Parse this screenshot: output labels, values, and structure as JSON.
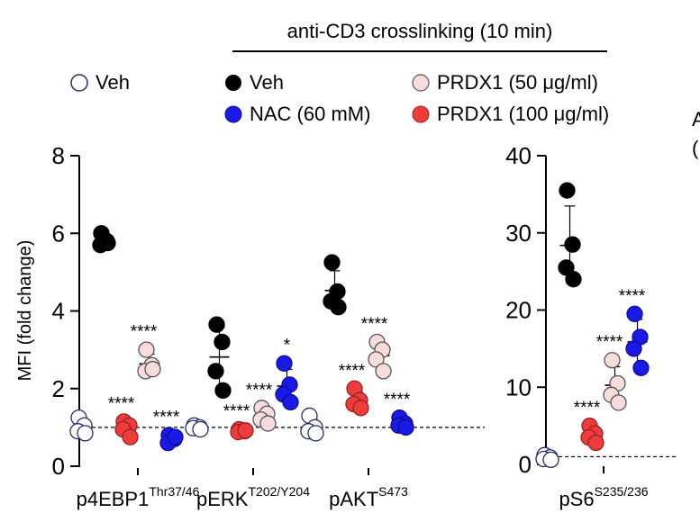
{
  "header": {
    "condition": "anti-CD3 crosslinking (10 min)"
  },
  "legend": [
    {
      "key": "veh_unstim",
      "label": "Veh",
      "fill": "#ffffff",
      "stroke": "#1f2f6b"
    },
    {
      "key": "veh",
      "label": "Veh",
      "fill": "#000000",
      "stroke": "#000000"
    },
    {
      "key": "nac",
      "label": "NAC (60 mM)",
      "fill": "#1a1ae6",
      "stroke": "#0c0c9a"
    },
    {
      "key": "prdx50",
      "label": "PRDX1 (50 μg/ml)",
      "fill": "#f8dcdc",
      "stroke": "#555555"
    },
    {
      "key": "prdx100",
      "label": "PRDX1 (100 μg/ml)",
      "fill": "#ee3b3b",
      "stroke": "#9a2222"
    }
  ],
  "edge_text": [
    "A",
    "("
  ],
  "chart_data": [
    {
      "type": "scatter",
      "ylabel": "MFI (fold change)",
      "ylim": [
        0,
        8
      ],
      "yticks": [
        "0",
        "2",
        "4",
        "6",
        "8"
      ],
      "baseline": 1,
      "groups": [
        {
          "label": "p4EBP1",
          "sup": "Thr37/46",
          "points": {
            "veh_unstim": [
              1.25,
              1.05,
              0.9,
              0.85
            ],
            "veh": [
              6.0,
              5.8,
              5.7,
              5.75
            ],
            "prdx100": [
              1.15,
              1.05,
              0.95,
              0.75
            ],
            "prdx50": [
              3.0,
              2.6,
              2.45,
              2.5
            ],
            "nac": [
              0.8,
              0.7,
              0.6,
              0.75
            ]
          },
          "stars": {
            "prdx100": "****",
            "prdx50": "****",
            "nac": "****"
          }
        },
        {
          "label": "pERK",
          "sup": "T202/Y204",
          "points": {
            "veh_unstim": [
              1.05,
              1.0,
              0.98,
              0.95
            ],
            "veh": [
              3.65,
              3.2,
              2.45,
              1.95
            ],
            "prdx100": [
              0.95,
              0.9,
              0.88,
              0.92
            ],
            "prdx50": [
              1.5,
              1.35,
              1.2,
              1.1
            ],
            "nac": [
              2.65,
              2.1,
              1.85,
              1.65
            ]
          },
          "stars": {
            "prdx100": "****",
            "prdx50": "****",
            "nac": "*"
          }
        },
        {
          "label": "pAKT",
          "sup": "S473",
          "points": {
            "veh_unstim": [
              1.3,
              1.0,
              0.9,
              0.85
            ],
            "veh": [
              5.25,
              4.5,
              4.25,
              4.1
            ],
            "prdx100": [
              2.0,
              1.7,
              1.6,
              1.5
            ],
            "prdx50": [
              3.2,
              3.0,
              2.75,
              2.45
            ],
            "nac": [
              1.25,
              1.1,
              1.05,
              1.0
            ]
          },
          "stars": {
            "prdx100": "****",
            "prdx50": "****",
            "nac": "****"
          }
        }
      ]
    },
    {
      "type": "scatter",
      "ylim": [
        0,
        40
      ],
      "yticks": [
        "0",
        "10",
        "20",
        "30",
        "40"
      ],
      "baseline": 1,
      "groups": [
        {
          "label": "pS6",
          "sup": "S235/236",
          "points": {
            "veh_unstim": [
              1.2,
              0.9,
              0.7,
              0.6
            ],
            "veh": [
              35.5,
              28.5,
              25.5,
              24.0
            ],
            "prdx100": [
              5.0,
              4.0,
              3.5,
              2.8
            ],
            "prdx50": [
              13.5,
              10.5,
              9.0,
              8.0
            ],
            "nac": [
              19.5,
              16.5,
              15.0,
              12.5
            ]
          },
          "stars": {
            "prdx100": "****",
            "prdx50": "****",
            "nac": "****"
          }
        }
      ]
    }
  ]
}
